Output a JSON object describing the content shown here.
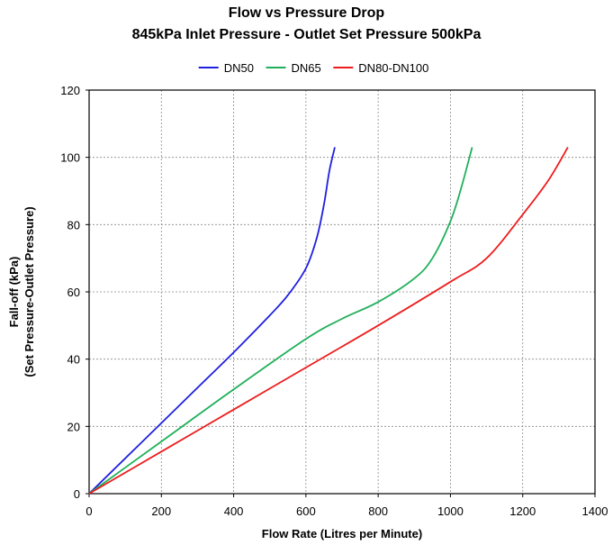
{
  "chart_data": {
    "type": "line",
    "title": "Flow vs Pressure Drop",
    "subtitle": "845kPa Inlet Pressure - Outlet Set Pressure 500kPa",
    "xlabel": "Flow Rate (Litres per Minute)",
    "ylabel": [
      "Fall-off (kPa)",
      "(Set Pressure-Outlet Pressure)"
    ],
    "xlim": [
      0,
      1400
    ],
    "ylim": [
      0,
      120
    ],
    "xticks": [
      "0",
      "200",
      "400",
      "600",
      "800",
      "1000",
      "1200",
      "1400"
    ],
    "yticks": [
      "0",
      "20",
      "40",
      "60",
      "80",
      "100",
      "120"
    ],
    "grid": true,
    "legend_position": "top",
    "series": [
      {
        "name": "DN50",
        "color": "#1f1fe0",
        "points": [
          [
            0,
            0
          ],
          [
            100,
            10.5
          ],
          [
            200,
            21
          ],
          [
            300,
            31.5
          ],
          [
            400,
            42
          ],
          [
            500,
            53
          ],
          [
            550,
            59
          ],
          [
            600,
            67
          ],
          [
            630,
            76
          ],
          [
            650,
            86
          ],
          [
            665,
            96
          ],
          [
            680,
            103
          ]
        ]
      },
      {
        "name": "DN65",
        "color": "#1fb05a",
        "points": [
          [
            0,
            0
          ],
          [
            200,
            15.5
          ],
          [
            400,
            31
          ],
          [
            600,
            46
          ],
          [
            700,
            52
          ],
          [
            800,
            57
          ],
          [
            900,
            64
          ],
          [
            950,
            70
          ],
          [
            1000,
            81
          ],
          [
            1030,
            91
          ],
          [
            1060,
            103
          ]
        ]
      },
      {
        "name": "DN80-DN100",
        "color": "#ee1c1c",
        "points": [
          [
            0,
            0
          ],
          [
            200,
            12.5
          ],
          [
            400,
            25
          ],
          [
            600,
            37.5
          ],
          [
            800,
            50
          ],
          [
            1000,
            63
          ],
          [
            1100,
            70
          ],
          [
            1200,
            83
          ],
          [
            1270,
            93
          ],
          [
            1325,
            103
          ]
        ]
      }
    ]
  }
}
